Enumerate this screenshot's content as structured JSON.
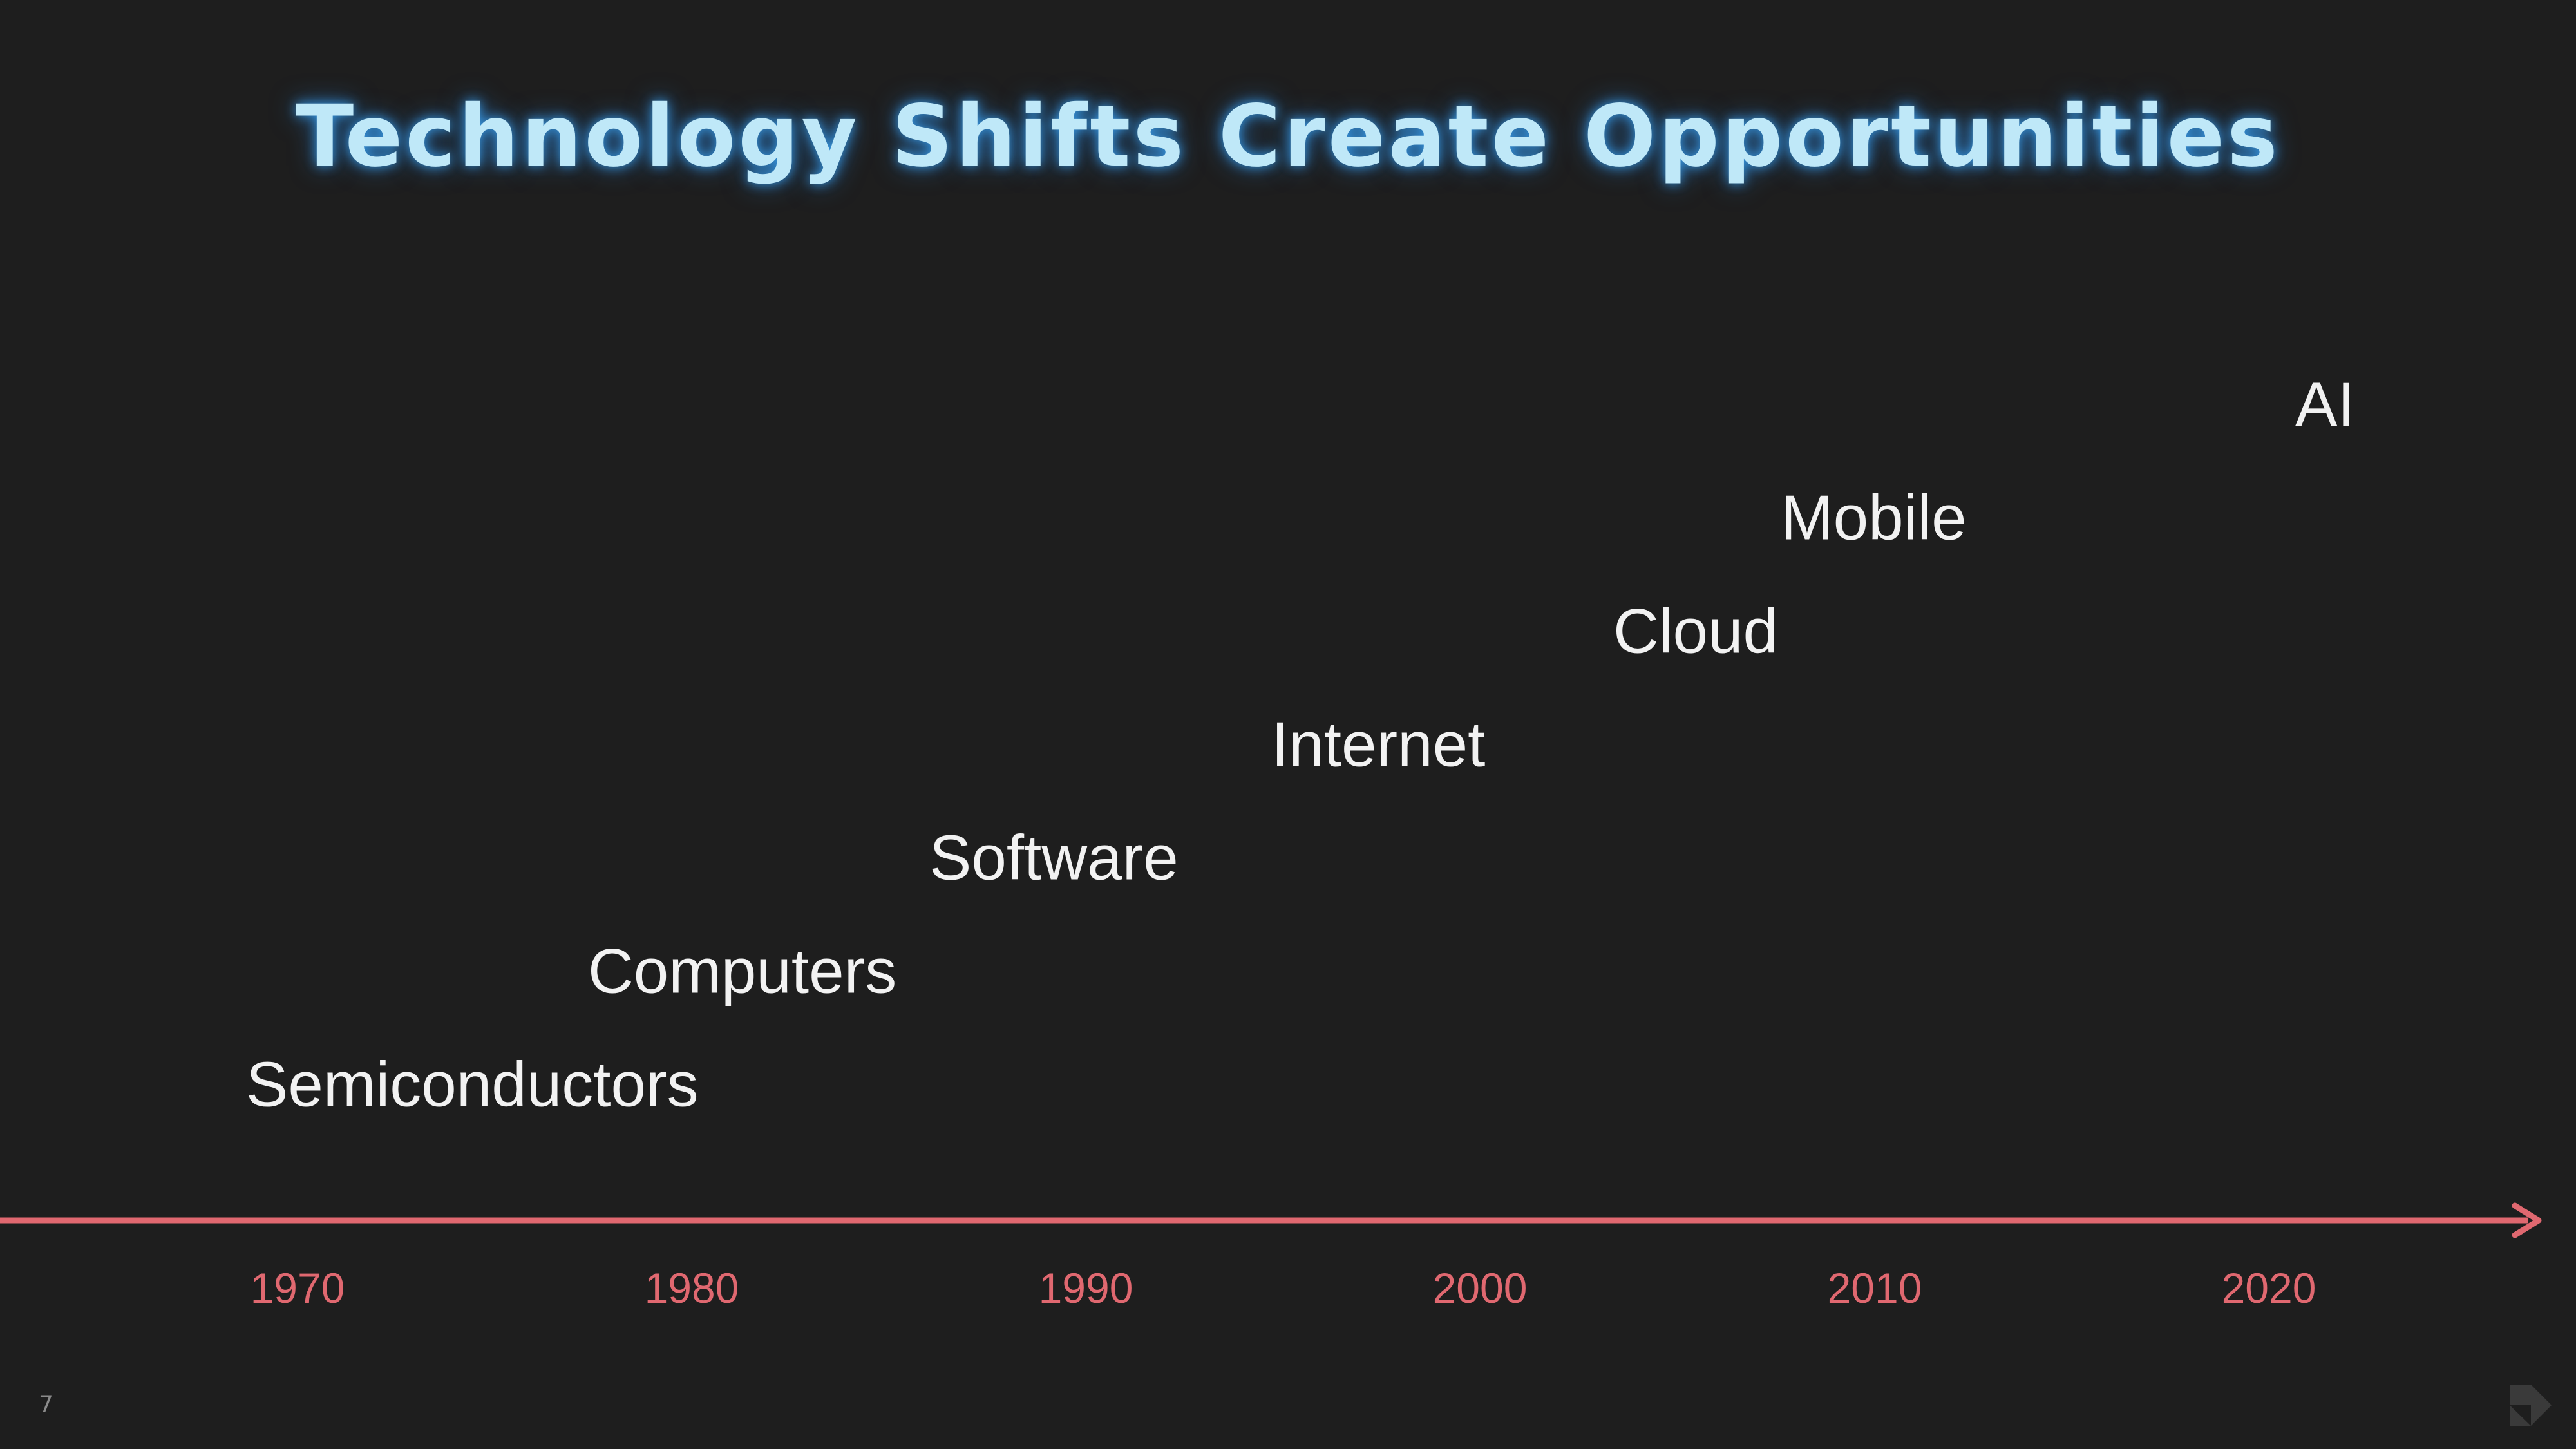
{
  "title": "Technology Shifts Create Opportunities",
  "timeline": {
    "items": [
      "Semiconductors",
      "Computers",
      "Software",
      "Internet",
      "Cloud",
      "Mobile",
      "AI"
    ],
    "years": [
      "1970",
      "1980",
      "1990",
      "2000",
      "2010",
      "2020"
    ]
  },
  "page_number": "7"
}
